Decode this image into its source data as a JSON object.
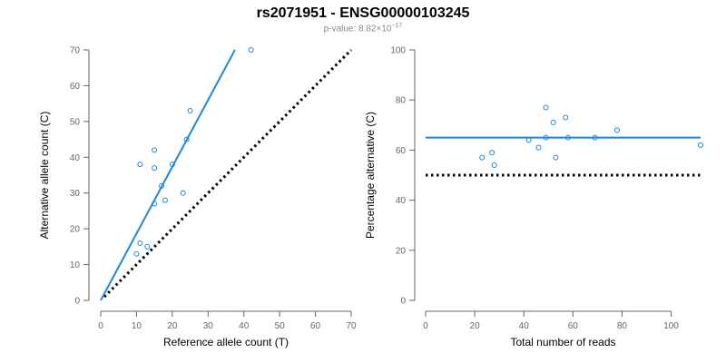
{
  "header": {
    "title": "rs2071951 - ENSG00000103245",
    "pvalue_prefix": "p-value: 8.82×10",
    "pvalue_exp": "−17"
  },
  "colors": {
    "series": "#1f88d6",
    "reference": "#000000",
    "axis": "#666666"
  },
  "chart_data": [
    {
      "type": "scatter",
      "title": "",
      "xlabel": "Reference allele count (T)",
      "ylabel": "Alternative allele count (C)",
      "xlim": [
        0,
        70
      ],
      "ylim": [
        0,
        70
      ],
      "xticks": [
        0,
        10,
        20,
        30,
        40,
        50,
        60,
        70
      ],
      "yticks": [
        0,
        10,
        20,
        30,
        40,
        50,
        60,
        70
      ],
      "points": [
        {
          "x": 11,
          "y": 38
        },
        {
          "x": 15,
          "y": 42
        },
        {
          "x": 15,
          "y": 37
        },
        {
          "x": 17,
          "y": 32
        },
        {
          "x": 20,
          "y": 38
        },
        {
          "x": 25,
          "y": 53
        },
        {
          "x": 24,
          "y": 45
        },
        {
          "x": 15,
          "y": 27
        },
        {
          "x": 18,
          "y": 28
        },
        {
          "x": 23,
          "y": 30
        },
        {
          "x": 11,
          "y": 16
        },
        {
          "x": 13,
          "y": 15
        },
        {
          "x": 10,
          "y": 13
        },
        {
          "x": 42,
          "y": 70
        }
      ],
      "fit_line": {
        "x": [
          0,
          37.5
        ],
        "y": [
          0,
          70
        ]
      },
      "reference_line": {
        "x": [
          1,
          70
        ],
        "y": [
          1,
          70
        ],
        "style": "dotted"
      }
    },
    {
      "type": "scatter",
      "title": "",
      "xlabel": "Total number of reads",
      "ylabel": "Percentage alternative (C)",
      "xlim": [
        0,
        112
      ],
      "ylim": [
        0,
        100
      ],
      "xticks": [
        0,
        20,
        40,
        60,
        80,
        100
      ],
      "yticks": [
        0,
        20,
        40,
        60,
        80,
        100
      ],
      "points": [
        {
          "x": 23,
          "y": 57
        },
        {
          "x": 27,
          "y": 59
        },
        {
          "x": 28,
          "y": 54
        },
        {
          "x": 42,
          "y": 64
        },
        {
          "x": 46,
          "y": 61
        },
        {
          "x": 49,
          "y": 77
        },
        {
          "x": 49,
          "y": 65
        },
        {
          "x": 52,
          "y": 71
        },
        {
          "x": 53,
          "y": 57
        },
        {
          "x": 57,
          "y": 73
        },
        {
          "x": 58,
          "y": 65
        },
        {
          "x": 69,
          "y": 65
        },
        {
          "x": 78,
          "y": 68
        },
        {
          "x": 112,
          "y": 62
        }
      ],
      "fit_line": {
        "x": [
          0,
          112
        ],
        "y": [
          65,
          65
        ]
      },
      "reference_line": {
        "x": [
          0,
          112
        ],
        "y": [
          50,
          50
        ],
        "style": "dotted"
      }
    }
  ]
}
